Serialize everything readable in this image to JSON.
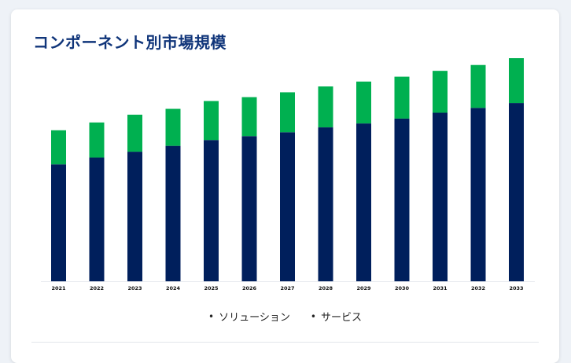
{
  "title": "コンポーネント別市場規模",
  "legend": [
    {
      "bullet": "•",
      "label": "ソリューション"
    },
    {
      "bullet": "•",
      "label": "サービス"
    }
  ],
  "colors": {
    "solution": "#001f5c",
    "service": "#00b050",
    "title": "#10357a"
  },
  "chart_data": {
    "type": "bar",
    "stacked": true,
    "categories": [
      "2021",
      "2022",
      "2023",
      "2024",
      "2025",
      "2026",
      "2027",
      "2028",
      "2029",
      "2030",
      "2031",
      "2032",
      "2033"
    ],
    "series": [
      {
        "name": "ソリューション",
        "values": [
          120,
          127,
          133,
          139,
          145,
          149,
          153,
          158,
          162,
          167,
          173,
          178,
          183
        ]
      },
      {
        "name": "サービス",
        "values": [
          35,
          36,
          38,
          38,
          40,
          40,
          41,
          42,
          43,
          43,
          43,
          44,
          46
        ]
      }
    ],
    "ylim": [
      0,
      250
    ],
    "grid": false,
    "legend_position": "bottom"
  }
}
